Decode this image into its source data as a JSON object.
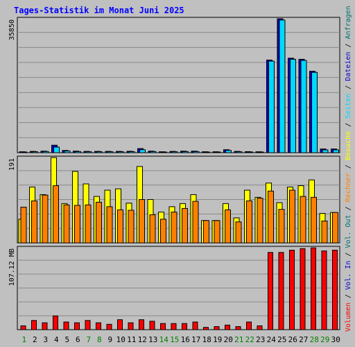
{
  "title": "Tages-Statistik im Monat Juni 2025",
  "colors": {
    "background": "#c0c0c0",
    "title": "#0000ff",
    "grid": "#898989",
    "frame": "#000000",
    "anfragen": "#006f6f",
    "dateien": "#0000cc",
    "seiten": "#00d8ff",
    "besuche": "#ffff00",
    "rechner": "#ff8000",
    "vol_out": "#006f6f",
    "vol_in": "#0000cc",
    "volumen": "#ff0000",
    "weekday": "#000080",
    "weekend": "#008000"
  },
  "legend_right": {
    "top": [
      "Anfragen",
      "Dateien",
      "Seiten",
      "Besuche",
      "Rechner",
      "Vol. Out",
      "Vol. In",
      "Volumen"
    ],
    "separator": "/"
  },
  "chart_data": [
    {
      "type": "bar",
      "panel": "hits",
      "ymax_label": "35850",
      "ylim": [
        0,
        35850
      ],
      "categories": [
        "1",
        "2",
        "3",
        "4",
        "5",
        "6",
        "7",
        "8",
        "9",
        "10",
        "11",
        "12",
        "13",
        "14",
        "15",
        "16",
        "17",
        "18",
        "19",
        "20",
        "21",
        "22",
        "23",
        "24",
        "25",
        "26",
        "27",
        "28",
        "29",
        "30"
      ],
      "weekend_days": [
        "1",
        "7",
        "8",
        "14",
        "15",
        "21",
        "22",
        "28",
        "29"
      ],
      "series": [
        {
          "name": "Anfragen",
          "values": [
            250,
            350,
            420,
            2000,
            600,
            420,
            350,
            350,
            350,
            350,
            380,
            1100,
            420,
            250,
            350,
            420,
            420,
            250,
            250,
            800,
            350,
            280,
            250,
            24800,
            35850,
            25300,
            25000,
            21800,
            1000,
            1000
          ]
        },
        {
          "name": "Dateien",
          "values": [
            180,
            250,
            320,
            1500,
            450,
            300,
            250,
            250,
            250,
            250,
            280,
            800,
            300,
            180,
            250,
            300,
            300,
            180,
            180,
            600,
            250,
            200,
            180,
            24500,
            35500,
            25000,
            24700,
            21500,
            750,
            750
          ]
        }
      ]
    },
    {
      "type": "bar",
      "panel": "visits",
      "ymax_label": "191",
      "ylim": [
        0,
        191
      ],
      "categories": [
        "1",
        "2",
        "3",
        "4",
        "5",
        "6",
        "7",
        "8",
        "9",
        "10",
        "11",
        "12",
        "13",
        "14",
        "15",
        "16",
        "17",
        "18",
        "19",
        "20",
        "21",
        "22",
        "23",
        "24",
        "25",
        "26",
        "27",
        "28",
        "29",
        "30"
      ],
      "series": [
        {
          "name": "Besuche",
          "values": [
            53,
            125,
            108,
            191,
            88,
            160,
            132,
            104,
            118,
            121,
            89,
            171,
            97,
            69,
            81,
            88,
            108,
            50,
            50,
            88,
            56,
            118,
            102,
            134,
            90,
            125,
            128,
            141,
            66,
            68
          ]
        },
        {
          "name": "Rechner",
          "values": [
            80,
            94,
            107,
            128,
            85,
            84,
            85,
            91,
            81,
            74,
            73,
            97,
            63,
            53,
            69,
            77,
            93,
            50,
            50,
            74,
            47,
            94,
            100,
            116,
            75,
            118,
            104,
            102,
            49,
            68
          ]
        }
      ]
    },
    {
      "type": "bar",
      "panel": "volume",
      "ymax_label": "107.12 MB",
      "ylim": [
        0,
        107.12
      ],
      "categories": [
        "1",
        "2",
        "3",
        "4",
        "5",
        "6",
        "7",
        "8",
        "9",
        "10",
        "11",
        "12",
        "13",
        "14",
        "15",
        "16",
        "17",
        "18",
        "19",
        "20",
        "21",
        "22",
        "23",
        "24",
        "25",
        "26",
        "27",
        "28",
        "29",
        "30"
      ],
      "series": [
        {
          "name": "Volumen",
          "values": [
            5,
            12,
            9,
            18,
            10,
            9,
            12,
            9,
            7,
            13,
            9,
            13,
            11,
            8,
            8,
            8,
            10,
            3,
            4,
            6,
            4,
            10,
            5,
            101,
            101,
            104,
            106,
            107,
            103,
            104
          ]
        }
      ]
    }
  ]
}
